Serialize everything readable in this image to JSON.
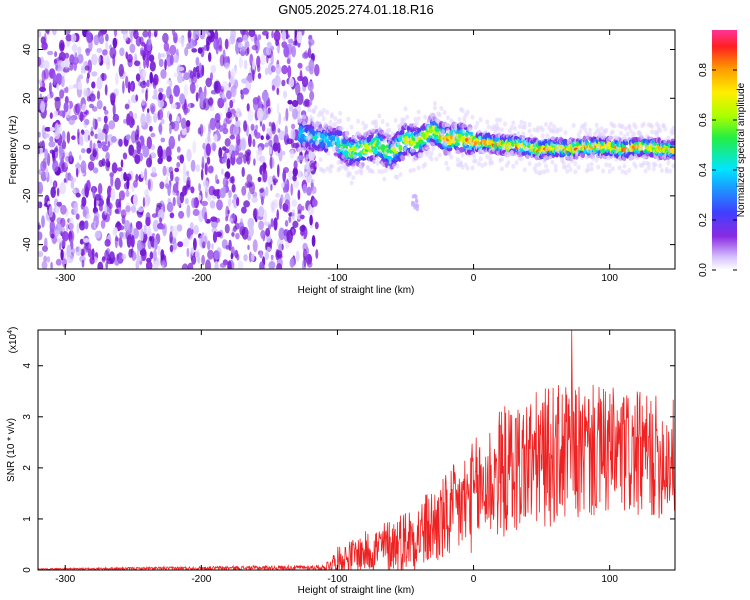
{
  "figure_title": "GN05.2025.274.01.18.R16",
  "chart_data": [
    {
      "type": "heatmap",
      "xlabel": "Height of straight line (km)",
      "ylabel": "Frequency (Hz)",
      "xlim": [
        -320,
        148
      ],
      "ylim": [
        -50,
        48
      ],
      "xticks": [
        "-300",
        "-200",
        "-100",
        "0",
        "100"
      ],
      "xtick_values": [
        -300,
        -200,
        -100,
        0,
        100
      ],
      "yticks": [
        "-40",
        "-20",
        "0",
        "20",
        "40"
      ],
      "ytick_values": [
        -40,
        -20,
        0,
        20,
        40
      ],
      "noise_region_km": [
        -320,
        -115
      ],
      "signal_ridge": {
        "heights_km": [
          -125,
          -110,
          -100,
          -90,
          -80,
          -70,
          -60,
          -50,
          -40,
          -30,
          -20,
          -10,
          0,
          10,
          20,
          30,
          40,
          50,
          60,
          70,
          80,
          90,
          100,
          110,
          120,
          130,
          140,
          148
        ],
        "frequency_hz": [
          5,
          3,
          2,
          -2,
          -1,
          1,
          -3,
          3,
          2,
          7,
          3,
          4,
          2,
          2,
          1,
          1,
          0,
          -1,
          0,
          -1,
          0,
          0,
          0,
          -1,
          0,
          0,
          -1,
          -1
        ]
      },
      "colorbar": {
        "label": "Normalized spectral amplitude",
        "ticks": [
          "0.0",
          "0.2",
          "0.4",
          "0.6",
          "0.8"
        ],
        "tick_values": [
          0.0,
          0.2,
          0.4,
          0.6,
          0.8
        ],
        "range": [
          0,
          0.96
        ],
        "colormap": "rainbow (white/violet low to red/pink high)"
      },
      "grid": false
    },
    {
      "type": "line",
      "xlabel": "Height of straight line (km)",
      "ylabel": "SNR (10 * v/v)",
      "y_multiplier": "(x10",
      "y_multiplier_exp": "4",
      "y_multiplier_close": ")",
      "xlim": [
        -320,
        148
      ],
      "ylim": [
        0,
        4.7
      ],
      "xticks": [
        "-300",
        "-200",
        "-100",
        "0",
        "100"
      ],
      "xtick_values": [
        -300,
        -200,
        -100,
        0,
        100
      ],
      "yticks": [
        "0",
        "1",
        "2",
        "3",
        "4"
      ],
      "ytick_values": [
        0,
        1,
        2,
        3,
        4
      ],
      "series": [
        {
          "color": "#ee2222",
          "envelope_x": [
            -320,
            -110,
            -100,
            -80,
            -60,
            -40,
            -20,
            0,
            10,
            20,
            40,
            60,
            80,
            100,
            120,
            140,
            148
          ],
          "envelope_mean": [
            0.02,
            0.05,
            0.2,
            0.35,
            0.5,
            0.7,
            1.0,
            1.45,
            1.7,
            1.9,
            2.1,
            2.25,
            2.3,
            2.3,
            2.25,
            2.2,
            2.2
          ],
          "envelope_spread": [
            0.01,
            0.05,
            0.25,
            0.4,
            0.55,
            0.7,
            0.9,
            1.1,
            1.2,
            1.3,
            1.35,
            1.4,
            1.35,
            1.3,
            1.25,
            1.2,
            1.2
          ],
          "peak_value": 4.7,
          "peak_x": 72
        }
      ],
      "grid": false
    }
  ]
}
